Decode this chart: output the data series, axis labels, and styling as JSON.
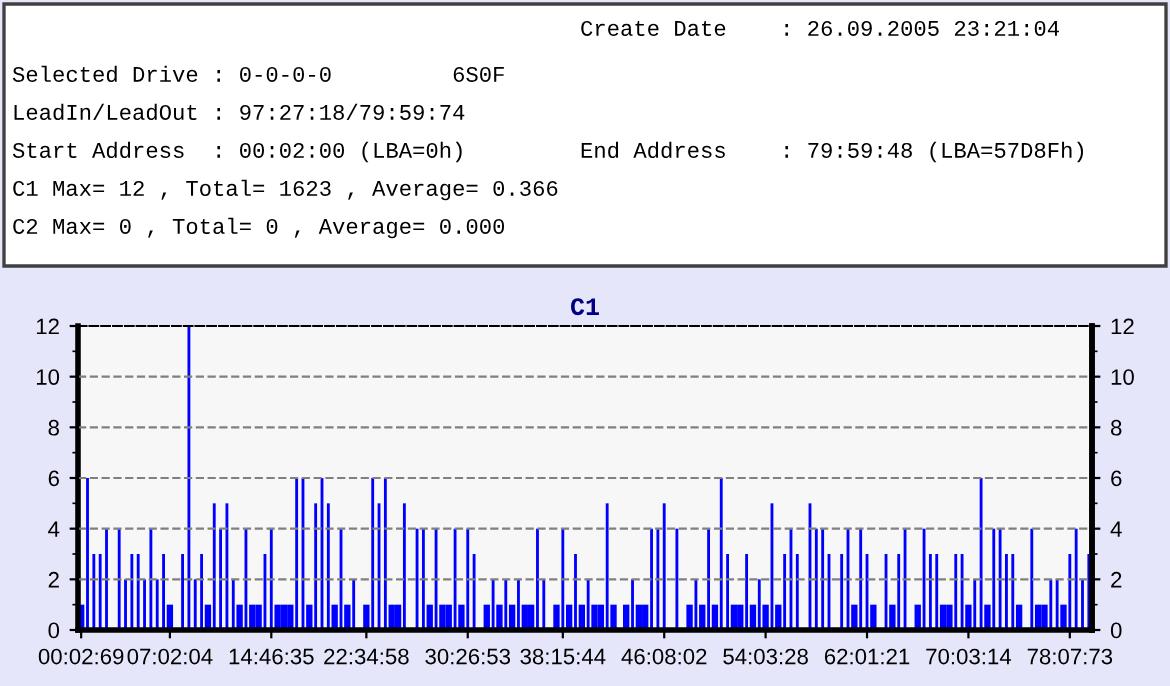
{
  "chart_data": {
    "type": "bar",
    "title": "C1",
    "annotations": [
      "Create Date    : 26.09.2005 23:21:04",
      "Selected Drive : 0-0-0-0         6S0F",
      "LeadIn/LeadOut : 97:27:18/79:59:74",
      "Start Address  : 00:02:00 (LBA=0h)",
      "End Address    : 79:59:48 (LBA=57D8Fh)",
      "C1 Max= 12 , Total= 1623 , Average= 0.366",
      "C2 Max= 0 , Total= 0 , Average= 0.000"
    ],
    "categories": [
      "00:02:69",
      null,
      null,
      null,
      null,
      null,
      null,
      null,
      null,
      null,
      null,
      null,
      null,
      null,
      "07:02:04",
      null,
      null,
      null,
      null,
      null,
      null,
      null,
      null,
      null,
      null,
      null,
      null,
      null,
      null,
      null,
      "14:46:35",
      null,
      null,
      null,
      null,
      null,
      null,
      null,
      null,
      null,
      null,
      null,
      null,
      null,
      null,
      "22:34:58",
      null,
      null,
      null,
      null,
      null,
      null,
      null,
      null,
      null,
      null,
      null,
      null,
      null,
      null,
      null,
      "30:26:53",
      null,
      null,
      null,
      null,
      null,
      null,
      null,
      null,
      null,
      null,
      null,
      null,
      null,
      null,
      "38:15:44",
      null,
      null,
      null,
      null,
      null,
      null,
      null,
      null,
      null,
      null,
      null,
      null,
      null,
      null,
      null,
      "46:08:02",
      null,
      null,
      null,
      null,
      null,
      null,
      null,
      null,
      null,
      null,
      null,
      null,
      null,
      null,
      null,
      "54:03:28",
      null,
      null,
      null,
      null,
      null,
      null,
      null,
      null,
      null,
      null,
      null,
      null,
      null,
      null,
      null,
      "62:01:21",
      null,
      null,
      null,
      null,
      null,
      null,
      null,
      null,
      null,
      null,
      null,
      null,
      null,
      null,
      null,
      "70:03:14",
      null,
      null,
      null,
      null,
      null,
      null,
      null,
      null,
      null,
      null,
      null,
      null,
      null,
      null,
      null,
      "78:07:73",
      null,
      null,
      null
    ],
    "values": [
      1,
      6,
      3,
      3,
      4,
      0,
      4,
      2,
      3,
      3,
      2,
      4,
      2,
      3,
      1,
      0,
      3,
      12,
      2,
      3,
      1,
      5,
      4,
      5,
      2,
      1,
      4,
      1,
      1,
      3,
      4,
      1,
      1,
      1,
      6,
      6,
      1,
      5,
      6,
      5,
      1,
      4,
      1,
      2,
      0,
      1,
      6,
      5,
      6,
      1,
      1,
      5,
      0,
      4,
      4,
      1,
      4,
      1,
      1,
      4,
      1,
      4,
      3,
      0,
      1,
      2,
      1,
      2,
      1,
      2,
      1,
      1,
      4,
      2,
      0,
      1,
      4,
      1,
      3,
      1,
      2,
      1,
      1,
      5,
      1,
      0,
      1,
      2,
      1,
      1,
      4,
      4,
      5,
      0,
      4,
      0,
      1,
      2,
      1,
      4,
      1,
      6,
      3,
      1,
      1,
      3,
      1,
      2,
      1,
      5,
      1,
      3,
      4,
      3,
      0,
      5,
      4,
      4,
      3,
      0,
      3,
      4,
      1,
      4,
      3,
      1,
      0,
      3,
      1,
      3,
      4,
      0,
      1,
      4,
      3,
      3,
      1,
      1,
      3,
      3,
      1,
      2,
      6,
      1,
      4,
      4,
      3,
      3,
      1,
      0,
      4,
      1,
      1,
      2,
      2,
      1,
      3,
      4,
      2,
      3
    ],
    "color": "#0000ff",
    "ylim": [
      0,
      12
    ],
    "yticks": [
      0,
      2,
      4,
      6,
      8,
      10,
      12
    ],
    "y2lim": [
      0,
      12
    ],
    "y2ticks": [
      0,
      2,
      4,
      6,
      8,
      10,
      12
    ],
    "grid": "y"
  }
}
